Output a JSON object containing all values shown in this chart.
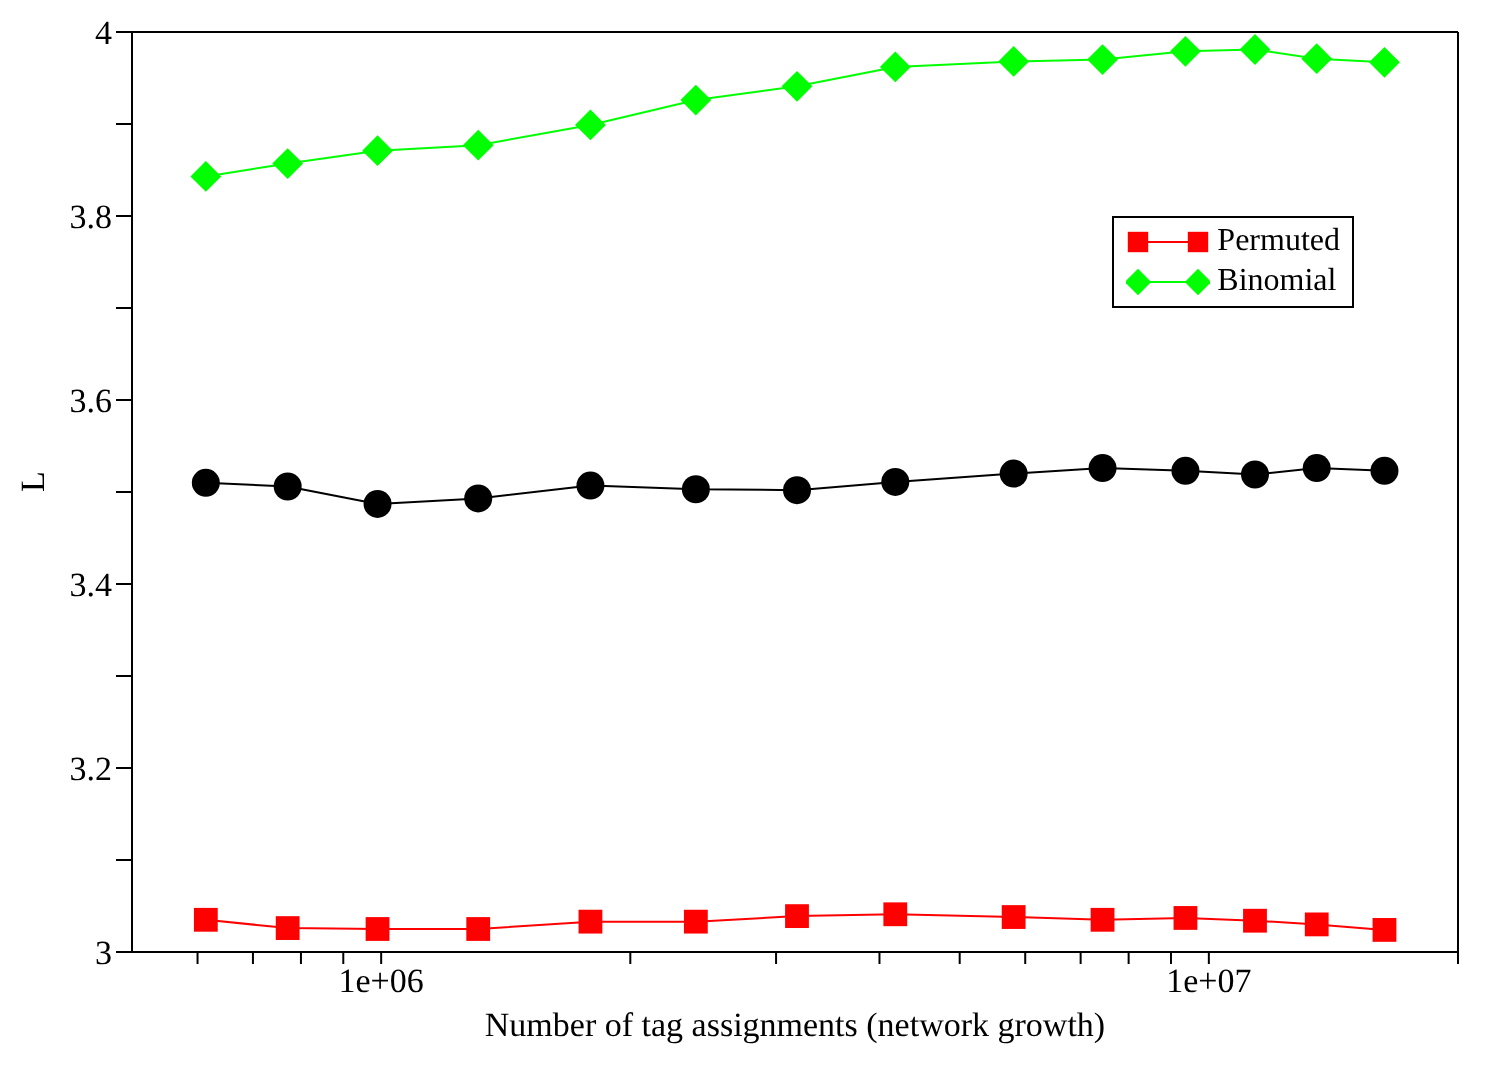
{
  "chart_data": {
    "type": "line",
    "xlabel": "Number of tag assignments (network growth)",
    "ylabel": "L",
    "log": "x",
    "x": [
      614000,
      771000,
      990000,
      1310000,
      1790000,
      2400000,
      3180000,
      4180000,
      5810000,
      7440000,
      9370000,
      11370000,
      13500000,
      16300000
    ],
    "xlim": [
      500000,
      20000000
    ],
    "xticks": [
      {
        "value": 600000,
        "label": null
      },
      {
        "value": 700000,
        "label": null
      },
      {
        "value": 800000,
        "label": null
      },
      {
        "value": 900000,
        "label": null
      },
      {
        "value": 1000000,
        "label": "1e+06"
      },
      {
        "value": 2000000,
        "label": null
      },
      {
        "value": 3000000,
        "label": null
      },
      {
        "value": 4000000,
        "label": null
      },
      {
        "value": 5000000,
        "label": null
      },
      {
        "value": 6000000,
        "label": null
      },
      {
        "value": 7000000,
        "label": null
      },
      {
        "value": 8000000,
        "label": null
      },
      {
        "value": 9000000,
        "label": null
      },
      {
        "value": 10000000,
        "label": "1e+07"
      },
      {
        "value": 20000000,
        "label": null
      }
    ],
    "ylim": [
      3,
      4
    ],
    "yticks": [
      3,
      {
        "value": 3.1,
        "label": null
      },
      3.2,
      {
        "value": 3.3,
        "label": null
      },
      3.4,
      {
        "value": 3.5,
        "label": null
      },
      3.6,
      {
        "value": 3.7,
        "label": null
      },
      3.8,
      {
        "value": 3.9,
        "label": null
      },
      4
    ],
    "grid": false,
    "legend": "top right",
    "series": [
      {
        "color": "#000000",
        "marker": "circle",
        "values": [
          3.51,
          3.506,
          3.487,
          3.493,
          3.507,
          3.503,
          3.502,
          3.511,
          3.52,
          3.526,
          3.523,
          3.519,
          3.526,
          3.523
        ]
      },
      {
        "name": "Permuted",
        "color": "#ff0000",
        "marker": "square",
        "values": [
          3.035,
          3.026,
          3.025,
          3.025,
          3.033,
          3.033,
          3.039,
          3.041,
          3.038,
          3.035,
          3.037,
          3.034,
          3.03,
          3.024
        ]
      },
      {
        "name": "Binomial",
        "color": "#00ff00",
        "marker": "diamond",
        "values": [
          3.843,
          3.857,
          3.871,
          3.877,
          3.899,
          3.926,
          3.941,
          3.962,
          3.968,
          3.97,
          3.979,
          3.981,
          3.971,
          3.967
        ]
      }
    ]
  }
}
